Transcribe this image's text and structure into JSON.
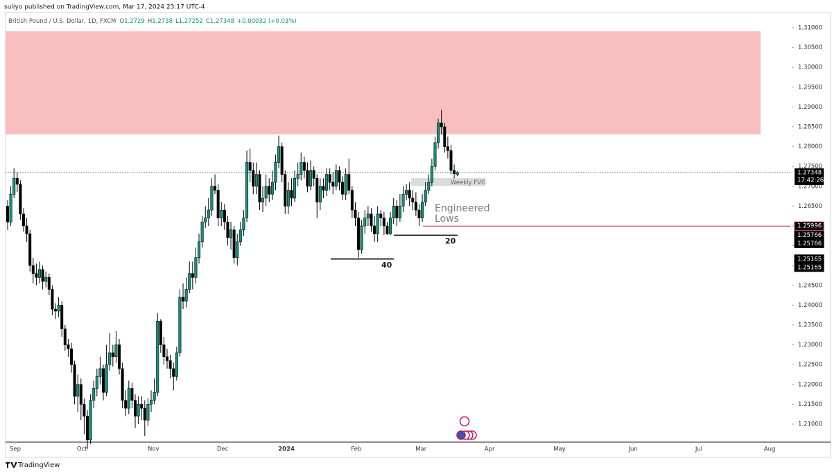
{
  "header": {
    "byline": "suliyo published on TradingView.com, Mar 17, 2024 23:17 UTC-4"
  },
  "chart_data": {
    "type": "candlestick",
    "symbol": "British Pound / U.S. Dollar, 1D, FXCM",
    "ohlc_labels": [
      "O",
      "H",
      "L",
      "C"
    ],
    "change": "+0.00032 (+0.03%)",
    "countdown": "17:42:26",
    "open": [
      1.265,
      1.261,
      1.268,
      1.272,
      1.2705,
      1.263,
      1.26,
      1.258,
      1.25,
      1.248,
      1.247,
      1.249,
      1.246,
      1.247,
      1.244,
      1.239,
      1.2385,
      1.24,
      1.234,
      1.23,
      1.229,
      1.225,
      1.217,
      1.22,
      1.215,
      1.212,
      1.206,
      1.216,
      1.219,
      1.222,
      1.224,
      1.218,
      1.225,
      1.228,
      1.227,
      1.23,
      1.224,
      1.216,
      1.214,
      1.219,
      1.216,
      1.212,
      1.215,
      1.214,
      1.211,
      1.215,
      1.216,
      1.218,
      1.236,
      1.23,
      1.227,
      1.226,
      1.224,
      1.222,
      1.228,
      1.242,
      1.241,
      1.244,
      1.248,
      1.247,
      1.252,
      1.256,
      1.261,
      1.262,
      1.264,
      1.27,
      1.269,
      1.262,
      1.264,
      1.261,
      1.257,
      1.259,
      1.252,
      1.256,
      1.259,
      1.262,
      1.276,
      1.274,
      1.27,
      1.273,
      1.266,
      1.267,
      1.27,
      1.268,
      1.271,
      1.276,
      1.28,
      1.273,
      1.265,
      1.269,
      1.267,
      1.272,
      1.273,
      1.276,
      1.274,
      1.27,
      1.274,
      1.272,
      1.266,
      1.27,
      1.269,
      1.273,
      1.271,
      1.27,
      1.274,
      1.271,
      1.268,
      1.273,
      1.269,
      1.264,
      1.262,
      1.254,
      1.26,
      1.262,
      1.263,
      1.26,
      1.258,
      1.263,
      1.262,
      1.26,
      1.258,
      1.262,
      1.265,
      1.262,
      1.265,
      1.268,
      1.269,
      1.267,
      1.266,
      1.264,
      1.262,
      1.266,
      1.269,
      1.271,
      1.275,
      1.281,
      1.286,
      1.285,
      1.28,
      1.279,
      1.274,
      1.2729
    ],
    "high": [
      1.2665,
      1.27,
      1.2745,
      1.2735,
      1.2715,
      1.2645,
      1.262,
      1.259,
      1.252,
      1.2505,
      1.251,
      1.25,
      1.2485,
      1.248,
      1.245,
      1.2405,
      1.242,
      1.241,
      1.235,
      1.2315,
      1.2305,
      1.226,
      1.2225,
      1.2215,
      1.2165,
      1.2135,
      1.2175,
      1.221,
      1.224,
      1.227,
      1.225,
      1.23,
      1.233,
      1.23,
      1.2335,
      1.2315,
      1.2255,
      1.2185,
      1.221,
      1.2205,
      1.2175,
      1.217,
      1.217,
      1.216,
      1.2165,
      1.2185,
      1.2215,
      1.238,
      1.2365,
      1.232,
      1.229,
      1.2275,
      1.2255,
      1.2295,
      1.244,
      1.2455,
      1.247,
      1.251,
      1.251,
      1.2545,
      1.258,
      1.2625,
      1.265,
      1.267,
      1.272,
      1.273,
      1.2705,
      1.266,
      1.2655,
      1.2625,
      1.261,
      1.26,
      1.258,
      1.261,
      1.264,
      1.279,
      1.2795,
      1.276,
      1.276,
      1.274,
      1.27,
      1.273,
      1.272,
      1.274,
      1.278,
      1.2828,
      1.281,
      1.274,
      1.271,
      1.272,
      1.274,
      1.276,
      1.2785,
      1.2775,
      1.276,
      1.2765,
      1.275,
      1.273,
      1.272,
      1.272,
      1.2745,
      1.2745,
      1.2735,
      1.2755,
      1.275,
      1.2725,
      1.2745,
      1.277,
      1.27,
      1.266,
      1.2635,
      1.2615,
      1.264,
      1.265,
      1.2645,
      1.2625,
      1.265,
      1.264,
      1.2635,
      1.261,
      1.2635,
      1.267,
      1.2665,
      1.268,
      1.27,
      1.2705,
      1.271,
      1.269,
      1.2685,
      1.2655,
      1.268,
      1.271,
      1.273,
      1.277,
      1.2825,
      1.287,
      1.2893,
      1.286,
      1.2825,
      1.2805,
      1.2755,
      1.2738
    ],
    "low": [
      1.259,
      1.26,
      1.267,
      1.2685,
      1.2615,
      1.2585,
      1.256,
      1.2485,
      1.2455,
      1.245,
      1.2455,
      1.244,
      1.2445,
      1.2425,
      1.2375,
      1.2365,
      1.237,
      1.232,
      1.2285,
      1.227,
      1.223,
      1.215,
      1.213,
      1.211,
      1.2075,
      1.2037,
      1.205,
      1.214,
      1.217,
      1.22,
      1.216,
      1.217,
      1.2235,
      1.2245,
      1.2255,
      1.2225,
      1.214,
      1.212,
      1.2125,
      1.214,
      1.209,
      1.21,
      1.211,
      1.207,
      1.2095,
      1.213,
      1.215,
      1.217,
      1.228,
      1.225,
      1.224,
      1.2215,
      1.2185,
      1.221,
      1.227,
      1.239,
      1.2395,
      1.243,
      1.244,
      1.2455,
      1.2505,
      1.2545,
      1.2595,
      1.26,
      1.2625,
      1.268,
      1.26,
      1.26,
      1.259,
      1.255,
      1.254,
      1.2505,
      1.25,
      1.255,
      1.2575,
      1.261,
      1.271,
      1.268,
      1.268,
      1.264,
      1.2635,
      1.265,
      1.266,
      1.2665,
      1.269,
      1.2745,
      1.271,
      1.263,
      1.263,
      1.265,
      1.266,
      1.27,
      1.2715,
      1.272,
      1.2685,
      1.269,
      1.27,
      1.262,
      1.264,
      1.267,
      1.2675,
      1.269,
      1.268,
      1.269,
      1.269,
      1.2665,
      1.2665,
      1.268,
      1.262,
      1.26,
      1.252,
      1.253,
      1.258,
      1.26,
      1.2585,
      1.256,
      1.256,
      1.26,
      1.2577,
      1.2577,
      1.25766,
      1.2605,
      1.26,
      1.261,
      1.2635,
      1.2665,
      1.265,
      1.264,
      1.2625,
      1.25996,
      1.261,
      1.265,
      1.268,
      1.27,
      1.274,
      1.2795,
      1.283,
      1.2785,
      1.277,
      1.273,
      1.272,
      1.27252
    ],
    "close": [
      1.261,
      1.268,
      1.272,
      1.2705,
      1.263,
      1.26,
      1.258,
      1.25,
      1.248,
      1.247,
      1.249,
      1.246,
      1.247,
      1.244,
      1.239,
      1.2385,
      1.24,
      1.234,
      1.23,
      1.229,
      1.225,
      1.217,
      1.22,
      1.215,
      1.212,
      1.206,
      1.216,
      1.219,
      1.222,
      1.224,
      1.218,
      1.225,
      1.228,
      1.227,
      1.23,
      1.224,
      1.216,
      1.214,
      1.219,
      1.216,
      1.212,
      1.215,
      1.214,
      1.211,
      1.215,
      1.216,
      1.218,
      1.236,
      1.23,
      1.227,
      1.226,
      1.224,
      1.222,
      1.228,
      1.242,
      1.241,
      1.244,
      1.248,
      1.247,
      1.252,
      1.256,
      1.261,
      1.262,
      1.264,
      1.27,
      1.269,
      1.262,
      1.264,
      1.261,
      1.257,
      1.259,
      1.252,
      1.256,
      1.259,
      1.262,
      1.276,
      1.274,
      1.27,
      1.273,
      1.266,
      1.267,
      1.27,
      1.268,
      1.271,
      1.276,
      1.28,
      1.273,
      1.265,
      1.269,
      1.267,
      1.272,
      1.273,
      1.276,
      1.274,
      1.27,
      1.274,
      1.272,
      1.266,
      1.27,
      1.269,
      1.273,
      1.271,
      1.27,
      1.274,
      1.271,
      1.268,
      1.273,
      1.269,
      1.264,
      1.262,
      1.254,
      1.26,
      1.262,
      1.263,
      1.26,
      1.258,
      1.263,
      1.262,
      1.26,
      1.258,
      1.262,
      1.265,
      1.262,
      1.265,
      1.268,
      1.269,
      1.267,
      1.266,
      1.264,
      1.262,
      1.266,
      1.269,
      1.271,
      1.275,
      1.281,
      1.286,
      1.285,
      1.28,
      1.279,
      1.274,
      1.27316,
      1.27348
    ],
    "up_color": "#089981",
    "down_color": "#000000",
    "xlim": [
      -0.65,
      245.4
    ],
    "xticks": [
      {
        "value": 2.4,
        "label": "Sep"
      },
      {
        "value": 23.3,
        "label": "Oct"
      },
      {
        "value": 45.7,
        "label": "Nov"
      },
      {
        "value": 67.4,
        "label": "Dec"
      },
      {
        "value": 87.4,
        "label": "2024"
      },
      {
        "value": 109.3,
        "label": "Feb"
      },
      {
        "value": 129.6,
        "label": "Mar"
      },
      {
        "value": 151.1,
        "label": "Apr"
      },
      {
        "value": 173,
        "label": "May"
      },
      {
        "value": 196.1,
        "label": "Jun"
      },
      {
        "value": 216.7,
        "label": "Jul"
      },
      {
        "value": 238.9,
        "label": "Aug"
      }
    ],
    "ylim": [
      1.20545,
      1.31385
    ],
    "yticks": [
      {
        "value": 1.21,
        "label": "1.21000"
      },
      {
        "value": 1.215,
        "label": "1.21500"
      },
      {
        "value": 1.22,
        "label": "1.22000"
      },
      {
        "value": 1.225,
        "label": "1.22500"
      },
      {
        "value": 1.23,
        "label": "1.23000"
      },
      {
        "value": 1.235,
        "label": "1.23500"
      },
      {
        "value": 1.24,
        "label": "1.24000"
      },
      {
        "value": 1.245,
        "label": "1.24500"
      },
      {
        "value": 1.25,
        "label": "1.25000"
      },
      {
        "value": 1.255,
        "label": "1.25500"
      },
      {
        "value": 1.26,
        "label": "1.26000"
      },
      {
        "value": 1.265,
        "label": "1.26500"
      },
      {
        "value": 1.27,
        "label": "1.27000"
      },
      {
        "value": 1.275,
        "label": "1.27500"
      },
      {
        "value": 1.28,
        "label": "1.28000"
      },
      {
        "value": 1.285,
        "label": "1.28500"
      },
      {
        "value": 1.29,
        "label": "1.29000"
      },
      {
        "value": 1.295,
        "label": "1.29500"
      },
      {
        "value": 1.3,
        "label": "1.30000"
      },
      {
        "value": 1.305,
        "label": "1.30500"
      },
      {
        "value": 1.31,
        "label": "1.31000"
      }
    ],
    "zones": [
      {
        "ymin": 1.2831,
        "ymax": 1.3091,
        "color": "#f8bbbd"
      },
      {
        "ymin": 1.2701,
        "ymax": 1.2721,
        "color": "#d9d9d9",
        "label": "Weekly FVG"
      }
    ],
    "levels": [
      {
        "value": 1.25996,
        "color": "#c2185b"
      },
      {
        "value": 1.25766,
        "color": "#000000",
        "label": "20"
      },
      {
        "value": 1.25766,
        "color": "#000000"
      },
      {
        "value": 1.25165,
        "color": "#000000",
        "label": "40"
      },
      {
        "value": 1.25165,
        "color": "#000000"
      }
    ],
    "annotation": [
      "Engineered",
      "Lows"
    ]
  },
  "footer": {
    "brand": "TradingView"
  }
}
